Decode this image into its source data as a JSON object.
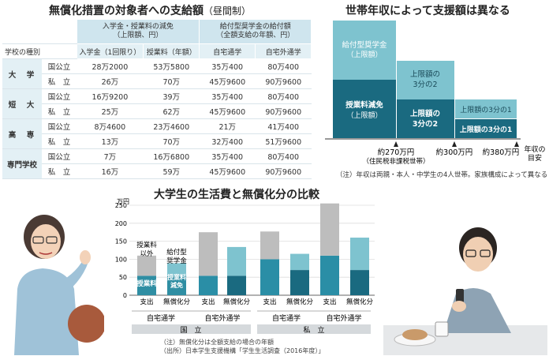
{
  "support_table": {
    "title": "無償化措置の対象者への支給額",
    "title_suffix": "（昼間制）",
    "school_type_header": "学校の種別",
    "group_tuition": {
      "line1": "入学金・授業料の減免",
      "line2": "（上限額、円）"
    },
    "group_scholarship": {
      "line1": "給付型奨学金の給付額",
      "line2": "（全額支給の年額、円）"
    },
    "columns": [
      "入学金（1回限り）",
      "授業料（年額）",
      "自宅通学",
      "自宅外通学"
    ],
    "rows": [
      {
        "level": "大　学",
        "type": "国公立",
        "values": [
          "28万2000",
          "53万5800",
          "35万400",
          "80万400"
        ]
      },
      {
        "level": "",
        "type": "私　立",
        "values": [
          "26万",
          "70万",
          "45万9600",
          "90万9600"
        ]
      },
      {
        "level": "短　大",
        "type": "国公立",
        "values": [
          "16万9200",
          "39万",
          "35万400",
          "80万400"
        ]
      },
      {
        "level": "",
        "type": "私　立",
        "values": [
          "25万",
          "62万",
          "45万9600",
          "90万9600"
        ]
      },
      {
        "level": "高　専",
        "type": "国公立",
        "values": [
          "8万4600",
          "23万4600",
          "21万",
          "41万400"
        ]
      },
      {
        "level": "",
        "type": "私　立",
        "values": [
          "13万",
          "70万",
          "32万400",
          "51万9600"
        ]
      },
      {
        "level": "専門学校",
        "type": "国公立",
        "values": [
          "7万",
          "16万6800",
          "35万400",
          "80万400"
        ]
      },
      {
        "level": "",
        "type": "私　立",
        "values": [
          "16万",
          "59万",
          "45万9600",
          "90万9600"
        ]
      }
    ]
  },
  "income_chart": {
    "title": "世帯年収によって支援額は異なる",
    "labels": {
      "scholarship": {
        "line1": "給付型奨学金",
        "line2": "（上限額）"
      },
      "tuition": {
        "line1": "授業料減免",
        "line2": "（上限額）"
      },
      "two_thirds_top": {
        "line1": "上限額の",
        "line2": "3分の2"
      },
      "two_thirds_bottom": {
        "line1": "上限額の",
        "line2": "3分の2"
      },
      "one_third_top": "上限額の3分の1",
      "one_third_bottom": "上限額の3分の1"
    },
    "x_labels": [
      {
        "line1": "約270万円",
        "line2": "（住民税非課税世帯）"
      },
      {
        "line1": "約300万円",
        "line2": ""
      },
      {
        "line1": "約380万円",
        "line2": ""
      }
    ],
    "axis_label": {
      "line1": "年収の",
      "line2": "目安"
    },
    "note": "（注）年収は両親・本人・中学生の4人世帯。家族構成によって異なる"
  },
  "chart_data": {
    "type": "bar",
    "title": "大学生の生活費と無償化分の比較",
    "ylabel": "万円",
    "ylim": [
      0,
      250
    ],
    "yticks": [
      0,
      50,
      100,
      150,
      200,
      250
    ],
    "categories": [
      "国立 自宅通学 支出",
      "国立 自宅通学 無償化分",
      "国立 自宅外通学 支出",
      "国立 自宅外通学 無償化分",
      "私立 自宅通学 支出",
      "私立 自宅通学 無償化分",
      "私立 自宅外通学 支出",
      "私立 自宅外通学 無償化分"
    ],
    "bar_labels": [
      "支出",
      "無償化分",
      "支出",
      "無償化分",
      "支出",
      "無償化分",
      "支出",
      "無償化分"
    ],
    "group_labels": [
      "自宅通学",
      "自宅外通学",
      "自宅通学",
      "自宅外通学"
    ],
    "super_labels": [
      "国　立",
      "私　立"
    ],
    "series": [
      {
        "name": "授業料",
        "values": [
          54,
          54,
          54,
          54,
          100,
          70,
          110,
          70
        ]
      },
      {
        "name": "授業料以外",
        "values": [
          56,
          35,
          121,
          80,
          77,
          45,
          145,
          90
        ]
      }
    ],
    "annotations": {
      "other": {
        "line1": "授業料",
        "line2": "以外"
      },
      "scholarship": {
        "line1": "給付型",
        "line2": "奨学金"
      },
      "tuition_label": "授業料",
      "reduction_label": {
        "line1": "授業料",
        "line2": "減免"
      }
    },
    "notes": [
      "（注）無償化分は全額支給の場合の年額",
      "（出所）日本学生支援機構「学生生活調査（2016年度）」"
    ]
  },
  "colors": {
    "dark_teal": "#1a6a80",
    "mid_teal": "#2f8ea3",
    "light_teal": "#7ec3cf",
    "gray": "#bdbdbd",
    "header": "#cfe5ee"
  }
}
